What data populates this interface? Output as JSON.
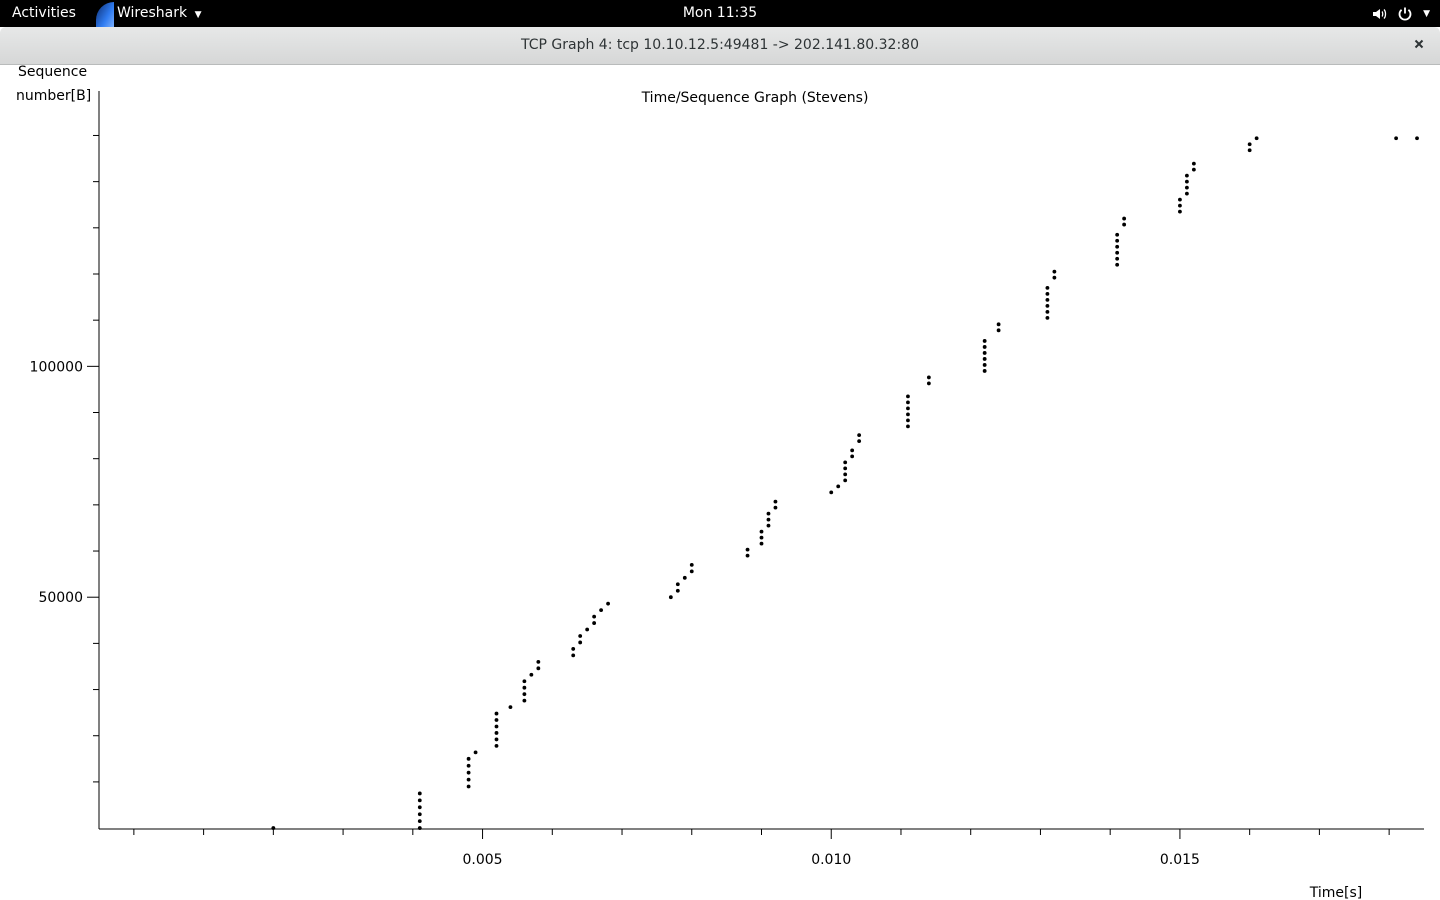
{
  "topbar": {
    "activities": "Activities",
    "app_menu": "Wireshark",
    "clock": "Mon 11:35",
    "icons": [
      "volume-icon",
      "power-icon",
      "chevron-down-icon"
    ]
  },
  "window": {
    "title": "TCP Graph 4: tcp 10.10.12.5:49481 -> 202.141.80.32:80",
    "close_icon": "close-icon"
  },
  "chart_data": {
    "type": "scatter",
    "title": "Time/Sequence Graph (Stevens)",
    "xlabel": "Time[s]",
    "ylabel_lines": [
      "Sequence",
      "number[B]"
    ],
    "x_ticks": [
      0.005,
      0.01,
      0.015
    ],
    "x_tick_labels": [
      "0.005",
      "0.010",
      "0.015"
    ],
    "y_ticks": [
      50000,
      100000
    ],
    "y_tick_labels": [
      "50000",
      "100000"
    ],
    "xlim": [
      -0.0005,
      0.0185
    ],
    "ylim": [
      -200,
      154000
    ],
    "grid": false,
    "series": [
      {
        "points": [
          [
            0.002,
            0
          ],
          [
            0.0041,
            0
          ],
          [
            0.0041,
            1500
          ],
          [
            0.0041,
            3000
          ],
          [
            0.0041,
            4500
          ],
          [
            0.0041,
            6000
          ],
          [
            0.0041,
            7500
          ],
          [
            0.0048,
            9000
          ],
          [
            0.0048,
            10500
          ],
          [
            0.0048,
            12000
          ],
          [
            0.0048,
            13500
          ],
          [
            0.0048,
            15000
          ],
          [
            0.0049,
            16400
          ],
          [
            0.0052,
            17800
          ],
          [
            0.0052,
            19200
          ],
          [
            0.0052,
            20600
          ],
          [
            0.0052,
            22000
          ],
          [
            0.0052,
            23400
          ],
          [
            0.0052,
            24800
          ],
          [
            0.0054,
            26200
          ],
          [
            0.0056,
            27600
          ],
          [
            0.0056,
            29000
          ],
          [
            0.0056,
            30400
          ],
          [
            0.0056,
            31800
          ],
          [
            0.0057,
            33200
          ],
          [
            0.0058,
            34600
          ],
          [
            0.0058,
            36000
          ],
          [
            0.0063,
            37400
          ],
          [
            0.0063,
            38800
          ],
          [
            0.0064,
            40200
          ],
          [
            0.0064,
            41600
          ],
          [
            0.0065,
            43000
          ],
          [
            0.0066,
            44400
          ],
          [
            0.0066,
            45800
          ],
          [
            0.0067,
            47200
          ],
          [
            0.0068,
            48600
          ],
          [
            0.0077,
            50000
          ],
          [
            0.0078,
            51400
          ],
          [
            0.0078,
            52800
          ],
          [
            0.0079,
            54200
          ],
          [
            0.008,
            55600
          ],
          [
            0.008,
            57000
          ],
          [
            0.0088,
            59000
          ],
          [
            0.0088,
            60300
          ],
          [
            0.009,
            61600
          ],
          [
            0.009,
            62900
          ],
          [
            0.009,
            64200
          ],
          [
            0.0091,
            65500
          ],
          [
            0.0091,
            66800
          ],
          [
            0.0091,
            68100
          ],
          [
            0.0092,
            69400
          ],
          [
            0.0092,
            70700
          ],
          [
            0.01,
            72700
          ],
          [
            0.0101,
            74000
          ],
          [
            0.0102,
            75300
          ],
          [
            0.0102,
            76600
          ],
          [
            0.0102,
            77900
          ],
          [
            0.0102,
            79200
          ],
          [
            0.0103,
            80500
          ],
          [
            0.0103,
            81800
          ],
          [
            0.0104,
            83800
          ],
          [
            0.0104,
            85100
          ],
          [
            0.0111,
            87000
          ],
          [
            0.0111,
            88300
          ],
          [
            0.0111,
            89600
          ],
          [
            0.0111,
            90900
          ],
          [
            0.0111,
            92200
          ],
          [
            0.0111,
            93500
          ],
          [
            0.0114,
            96300
          ],
          [
            0.0114,
            97600
          ],
          [
            0.0122,
            99000
          ],
          [
            0.0122,
            100300
          ],
          [
            0.0122,
            101600
          ],
          [
            0.0122,
            102900
          ],
          [
            0.0122,
            104200
          ],
          [
            0.0122,
            105500
          ],
          [
            0.0124,
            107800
          ],
          [
            0.0124,
            109100
          ],
          [
            0.0131,
            110500
          ],
          [
            0.0131,
            111800
          ],
          [
            0.0131,
            113100
          ],
          [
            0.0131,
            114400
          ],
          [
            0.0131,
            115700
          ],
          [
            0.0131,
            117000
          ],
          [
            0.0132,
            119200
          ],
          [
            0.0132,
            120500
          ],
          [
            0.0141,
            122000
          ],
          [
            0.0141,
            123300
          ],
          [
            0.0141,
            124600
          ],
          [
            0.0141,
            125900
          ],
          [
            0.0141,
            127200
          ],
          [
            0.0141,
            128500
          ],
          [
            0.0142,
            130700
          ],
          [
            0.0142,
            132000
          ],
          [
            0.015,
            133500
          ],
          [
            0.015,
            134800
          ],
          [
            0.015,
            136100
          ],
          [
            0.0151,
            137400
          ],
          [
            0.0151,
            138700
          ],
          [
            0.0151,
            140000
          ],
          [
            0.0151,
            141300
          ],
          [
            0.0152,
            142600
          ],
          [
            0.0152,
            143900
          ],
          [
            0.016,
            146800
          ],
          [
            0.016,
            148100
          ],
          [
            0.0161,
            149400
          ],
          [
            0.0181,
            149400
          ],
          [
            0.0184,
            149400
          ]
        ]
      }
    ]
  }
}
